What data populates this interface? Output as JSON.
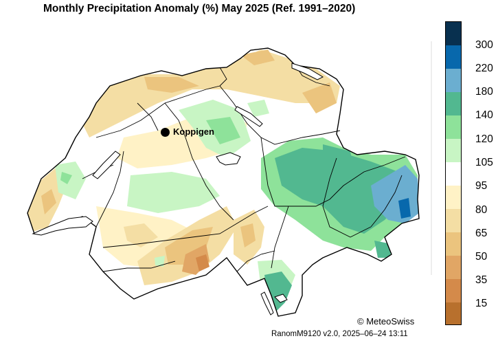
{
  "title": "Monthly Precipitation Anomaly (%) May 2025  (Ref. 1991–2020)",
  "station": {
    "name": "Koppigen"
  },
  "legend": {
    "bins": [
      {
        "color": "#08304f"
      },
      {
        "label": "300",
        "color": "#0868ac"
      },
      {
        "label": "220",
        "color": "#6baed0"
      },
      {
        "label": "180",
        "color": "#52b890"
      },
      {
        "label": "140",
        "color": "#8ee29a"
      },
      {
        "label": "120",
        "color": "#c8f5c4"
      },
      {
        "label": "105",
        "color": "#ffffff"
      },
      {
        "label": "95",
        "color": "#fff2c6"
      },
      {
        "label": "80",
        "color": "#f4dea4"
      },
      {
        "label": "65",
        "color": "#ebc47e"
      },
      {
        "label": "50",
        "color": "#e1a665"
      },
      {
        "label": "35",
        "color": "#d48a4a"
      },
      {
        "label": "15",
        "color": "#b8702d"
      }
    ]
  },
  "footer": {
    "copyright": "© MeteoSwiss",
    "version": "RanomM9120 v2.0, 2025–06–24 13:11"
  }
}
